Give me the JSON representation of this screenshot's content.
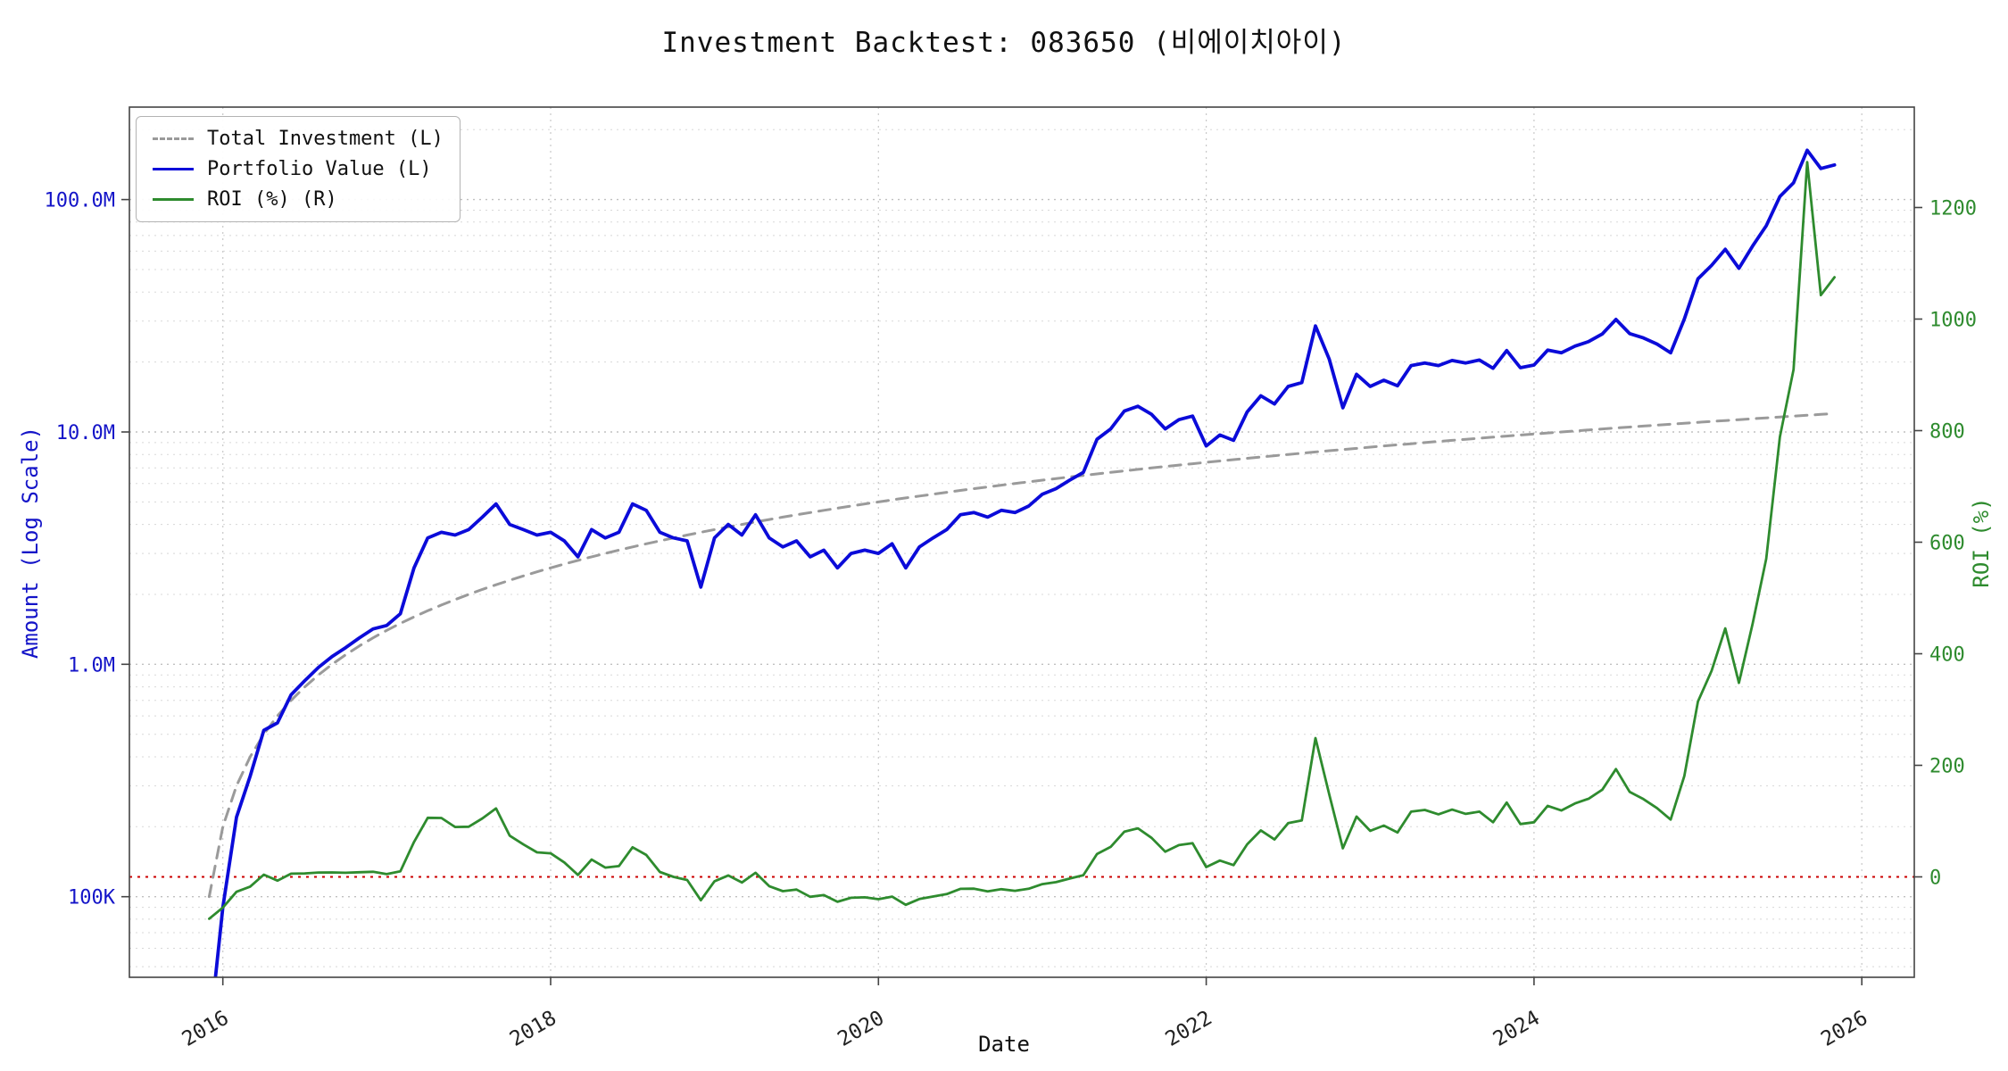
{
  "title": "Investment Backtest: 083650 (비에이치아이)",
  "chart_data": {
    "type": "line",
    "title": "Investment Backtest: 083650 (비에이치아이)",
    "xlabel": "Date",
    "ylabel_left": "Amount (Log Scale)",
    "ylabel_right": "ROI (%)",
    "grid": true,
    "legend_position": "upper-left",
    "x_ticks": [
      2016,
      2018,
      2020,
      2022,
      2024,
      2026
    ],
    "x_range": [
      2015.43,
      2026.32
    ],
    "left_axis": {
      "scale": "log",
      "unit": "millions",
      "color": "#1414c8",
      "range_millions": [
        0.045,
        250
      ],
      "ticks": [
        {
          "value": 0.1,
          "label": "100K"
        },
        {
          "value": 1,
          "label": "1.0M"
        },
        {
          "value": 10,
          "label": "10.0M"
        },
        {
          "value": 100,
          "label": "100.0M"
        }
      ]
    },
    "right_axis": {
      "scale": "linear",
      "color": "#2e8b2e",
      "range": [
        -180,
        1380
      ],
      "ticks": [
        0,
        200,
        400,
        600,
        800,
        1000,
        1200
      ]
    },
    "zero_line": {
      "axis": "right",
      "value": 0,
      "color": "#cc0000",
      "style": "dotted"
    },
    "dates": [
      "2015-12",
      "2016-01",
      "2016-02",
      "2016-03",
      "2016-04",
      "2016-05",
      "2016-06",
      "2016-07",
      "2016-08",
      "2016-09",
      "2016-10",
      "2016-11",
      "2016-12",
      "2017-01",
      "2017-02",
      "2017-03",
      "2017-04",
      "2017-05",
      "2017-06",
      "2017-07",
      "2017-08",
      "2017-09",
      "2017-10",
      "2017-11",
      "2017-12",
      "2018-01",
      "2018-02",
      "2018-03",
      "2018-04",
      "2018-05",
      "2018-06",
      "2018-07",
      "2018-08",
      "2018-09",
      "2018-10",
      "2018-11",
      "2018-12",
      "2019-01",
      "2019-02",
      "2019-03",
      "2019-04",
      "2019-05",
      "2019-06",
      "2019-07",
      "2019-08",
      "2019-09",
      "2019-10",
      "2019-11",
      "2019-12",
      "2020-01",
      "2020-02",
      "2020-03",
      "2020-04",
      "2020-05",
      "2020-06",
      "2020-07",
      "2020-08",
      "2020-09",
      "2020-10",
      "2020-11",
      "2020-12",
      "2021-01",
      "2021-02",
      "2021-03",
      "2021-04",
      "2021-05",
      "2021-06",
      "2021-07",
      "2021-08",
      "2021-09",
      "2021-10",
      "2021-11",
      "2021-12",
      "2022-01",
      "2022-02",
      "2022-03",
      "2022-04",
      "2022-05",
      "2022-06",
      "2022-07",
      "2022-08",
      "2022-09",
      "2022-10",
      "2022-11",
      "2022-12",
      "2023-01",
      "2023-02",
      "2023-03",
      "2023-04",
      "2023-05",
      "2023-06",
      "2023-07",
      "2023-08",
      "2023-09",
      "2023-10",
      "2023-11",
      "2023-12",
      "2024-01",
      "2024-02",
      "2024-03",
      "2024-04",
      "2024-05",
      "2024-06",
      "2024-07",
      "2024-08",
      "2024-09",
      "2024-10",
      "2024-11",
      "2024-12",
      "2025-01",
      "2025-02",
      "2025-03",
      "2025-04",
      "2025-05",
      "2025-06",
      "2025-07",
      "2025-08",
      "2025-09",
      "2025-10",
      "2025-11"
    ],
    "series": [
      {
        "name": "Total Investment (L)",
        "axis": "left",
        "color": "#9a9a9a",
        "style": "dashed",
        "unit": "millions",
        "values": [
          0.1,
          0.2,
          0.3,
          0.4,
          0.5,
          0.6,
          0.7,
          0.8,
          0.9,
          1.0,
          1.1,
          1.2,
          1.3,
          1.4,
          1.5,
          1.6,
          1.7,
          1.8,
          1.9,
          2.0,
          2.1,
          2.2,
          2.3,
          2.4,
          2.5,
          2.6,
          2.7,
          2.8,
          2.9,
          3.0,
          3.1,
          3.2,
          3.3,
          3.4,
          3.5,
          3.6,
          3.7,
          3.8,
          3.9,
          4.0,
          4.1,
          4.2,
          4.3,
          4.4,
          4.5,
          4.6,
          4.7,
          4.8,
          4.9,
          5.0,
          5.1,
          5.2,
          5.3,
          5.4,
          5.5,
          5.6,
          5.7,
          5.8,
          5.9,
          6.0,
          6.1,
          6.2,
          6.3,
          6.4,
          6.5,
          6.6,
          6.7,
          6.8,
          6.9,
          7.0,
          7.1,
          7.2,
          7.3,
          7.4,
          7.5,
          7.6,
          7.7,
          7.8,
          7.9,
          8.0,
          8.1,
          8.2,
          8.3,
          8.4,
          8.5,
          8.6,
          8.7,
          8.8,
          8.9,
          9.0,
          9.1,
          9.2,
          9.3,
          9.4,
          9.5,
          9.6,
          9.7,
          9.8,
          9.9,
          10.0,
          10.1,
          10.2,
          10.3,
          10.4,
          10.5,
          10.6,
          10.7,
          10.8,
          10.9,
          11.0,
          11.1,
          11.2,
          11.3,
          11.4,
          11.5,
          11.6,
          11.7,
          11.8,
          11.9,
          12.0
        ]
      },
      {
        "name": "Portfolio Value (L)",
        "axis": "left",
        "color": "#0b0bd9",
        "style": "solid",
        "unit": "millions",
        "values": [
          0.025,
          0.09,
          0.22,
          0.33,
          0.52,
          0.56,
          0.74,
          0.85,
          0.97,
          1.08,
          1.18,
          1.3,
          1.42,
          1.47,
          1.65,
          2.6,
          3.5,
          3.7,
          3.6,
          3.8,
          4.3,
          4.9,
          4.0,
          3.8,
          3.6,
          3.7,
          3.4,
          2.9,
          3.8,
          3.5,
          3.7,
          4.9,
          4.6,
          3.7,
          3.5,
          3.4,
          2.15,
          3.5,
          4.0,
          3.6,
          4.4,
          3.5,
          3.2,
          3.4,
          2.9,
          3.1,
          2.6,
          3.0,
          3.1,
          3.0,
          3.3,
          2.6,
          3.2,
          3.5,
          3.8,
          4.4,
          4.5,
          4.3,
          4.6,
          4.5,
          4.8,
          5.4,
          5.7,
          6.2,
          6.7,
          9.3,
          10.3,
          12.3,
          12.9,
          11.9,
          10.3,
          11.3,
          11.7,
          8.7,
          9.7,
          9.2,
          12.2,
          14.3,
          13.2,
          15.7,
          16.3,
          28.6,
          20.6,
          12.7,
          17.7,
          15.7,
          16.7,
          15.8,
          19.3,
          19.8,
          19.3,
          20.3,
          19.8,
          20.4,
          18.8,
          22.4,
          18.9,
          19.4,
          22.5,
          21.9,
          23.4,
          24.5,
          26.4,
          30.5,
          26.5,
          25.4,
          23.9,
          21.9,
          30.6,
          45.6,
          52.1,
          61.1,
          50.6,
          63.1,
          77.1,
          103.1,
          118.1,
          163.0,
          136.0,
          141.0
        ]
      },
      {
        "name": "ROI (%) (R)",
        "axis": "right",
        "color": "#2e8b2e",
        "style": "solid",
        "unit": "percent",
        "values": [
          -75.0,
          -55.0,
          -26.7,
          -17.5,
          4.0,
          -6.7,
          5.7,
          6.3,
          7.8,
          8.0,
          7.3,
          8.3,
          9.2,
          5.0,
          10.0,
          62.5,
          105.9,
          105.6,
          89.5,
          90.0,
          104.8,
          122.7,
          73.9,
          58.3,
          44.0,
          42.3,
          25.9,
          3.6,
          31.0,
          16.7,
          19.4,
          53.1,
          39.4,
          8.8,
          0.0,
          -5.6,
          -41.9,
          -7.9,
          2.6,
          -10.0,
          7.3,
          -16.7,
          -25.6,
          -22.7,
          -35.6,
          -32.6,
          -44.7,
          -37.5,
          -36.7,
          -40.0,
          -35.3,
          -50.0,
          -39.6,
          -35.2,
          -30.9,
          -21.4,
          -21.1,
          -25.9,
          -22.0,
          -25.0,
          -21.3,
          -12.9,
          -9.5,
          -3.1,
          3.1,
          40.9,
          53.7,
          80.9,
          87.0,
          70.0,
          45.1,
          56.9,
          60.3,
          17.6,
          29.3,
          21.1,
          58.4,
          83.3,
          67.1,
          96.3,
          101.2,
          248.8,
          148.2,
          51.2,
          108.2,
          82.6,
          92.0,
          79.5,
          116.9,
          120.0,
          112.1,
          120.7,
          112.9,
          117.0,
          97.9,
          133.3,
          94.8,
          98.0,
          127.3,
          119.0,
          131.7,
          140.2,
          156.3,
          193.3,
          152.4,
          139.6,
          123.4,
          102.8,
          180.7,
          314.5,
          369.4,
          445.5,
          347.8,
          453.5,
          570.4,
          788.8,
          909.4,
          1281.4,
          1042.9,
          1075.0
        ]
      }
    ]
  }
}
